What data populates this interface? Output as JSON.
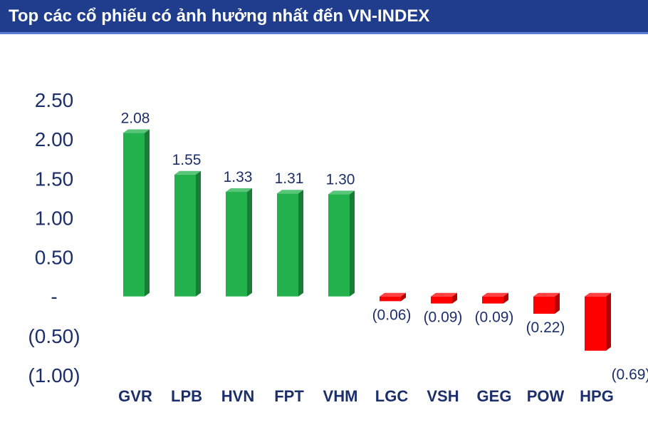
{
  "header": {
    "title": "Top các cổ phiếu có ảnh hưởng nhất đến VN-INDEX"
  },
  "colors": {
    "header_bg": "#1f3d8c",
    "positive": "#22b14c",
    "negative": "#ff0000",
    "text": "#1c2f6b"
  },
  "chart_data": {
    "type": "bar",
    "categories": [
      "GVR",
      "LPB",
      "HVN",
      "FPT",
      "VHM",
      "LGC",
      "VSH",
      "GEG",
      "POW",
      "HPG"
    ],
    "values": [
      2.08,
      1.55,
      1.33,
      1.31,
      1.3,
      -0.06,
      -0.09,
      -0.09,
      -0.22,
      -0.69
    ],
    "data_labels": [
      "2.08",
      "1.55",
      "1.33",
      "1.31",
      "1.30",
      "(0.06)",
      "(0.09)",
      "(0.09)",
      "(0.22)",
      "(0.69)"
    ],
    "ylim": [
      -1.0,
      2.5
    ],
    "yticks": [
      2.5,
      2.0,
      1.5,
      1.0,
      0.5,
      0,
      -0.5,
      -1.0
    ],
    "ytick_labels": [
      "2.50",
      "2.00",
      "1.50",
      "1.00",
      "0.50",
      "-",
      "(0.50)",
      "(1.00)"
    ],
    "grid": false,
    "legend": "none"
  }
}
